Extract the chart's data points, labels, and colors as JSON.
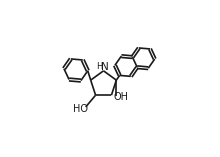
{
  "bg_color": "#ffffff",
  "line_color": "#1a1a1a",
  "line_width": 1.2,
  "font_size_N": 7.5,
  "font_size_H": 6.0,
  "font_size_OH": 7.0,
  "figsize": [
    2.2,
    1.57
  ],
  "dpi": 100,
  "xlim": [
    0,
    2.2
  ],
  "ylim": [
    0,
    1.57
  ]
}
